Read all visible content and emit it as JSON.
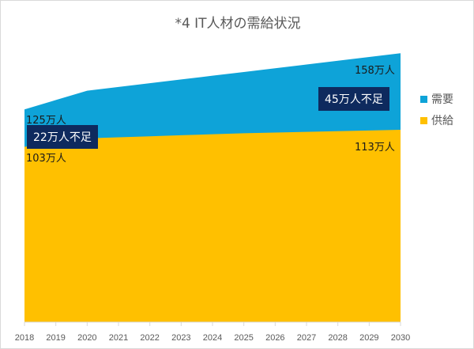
{
  "chart_data": {
    "type": "area",
    "title": "*4 IT人材の需給状況",
    "x": [
      2018,
      2019,
      2020,
      2021,
      2022,
      2023,
      2024,
      2025,
      2026,
      2027,
      2028,
      2029,
      2030
    ],
    "series": [
      {
        "name": "需要",
        "color": "#0ea3d8",
        "values": [
          125,
          130.5,
          136,
          138.2,
          140.4,
          142.6,
          144.8,
          147,
          149.2,
          151.4,
          153.6,
          155.8,
          158
        ]
      },
      {
        "name": "供給",
        "color": "#ffc000",
        "values": [
          103,
          105.5,
          108,
          108.6,
          109.2,
          109.8,
          110.4,
          111,
          111.4,
          111.8,
          112.2,
          112.6,
          113
        ]
      }
    ],
    "ylim": [
      0,
      188
    ],
    "annotations": {
      "d_start": "125万人",
      "d_end": "158万人",
      "s_start": "103万人",
      "s_end": "113万人",
      "gap_start": "22万人不足",
      "gap_end": "45万人不足"
    },
    "legend": "right"
  }
}
